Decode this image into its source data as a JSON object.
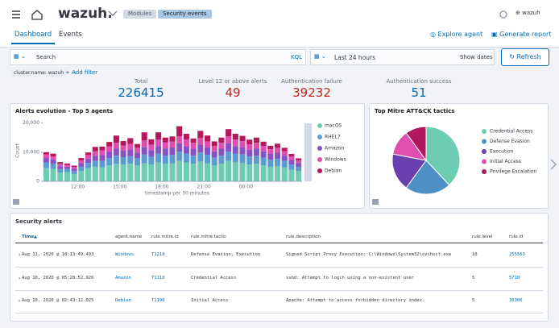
{
  "header": {
    "brand": "wazuh.",
    "breadcrumbs": [
      "Modules",
      "Security events"
    ],
    "user": "wazuh"
  },
  "tabs": [
    "Dashboard",
    "Events"
  ],
  "actions": [
    "Explore agent",
    "Generate report"
  ],
  "search": {
    "placeholder": "Search",
    "language": "KQL",
    "time_range": "Last 24 hours",
    "show_dates": "Show dates",
    "refresh": "Refresh"
  },
  "filters": {
    "active": "cluster.name: wazuh",
    "add": "+ Add filter"
  },
  "stats": [
    {
      "label": "Total",
      "value": 226415
    },
    {
      "label": "Level 12 or above alerts",
      "value": 49
    },
    {
      "label": "Authentication failure",
      "value": 39232
    },
    {
      "label": "Authentication success",
      "value": 51
    }
  ],
  "alerts_chart": {
    "type": "bar",
    "stacked": true,
    "title": "Alerts evolution - Top 5 agents",
    "x_label": "timestamp per 30 minutes",
    "y_label": "Count",
    "categories": [
      null,
      null,
      null,
      null,
      null,
      "12:00",
      null,
      null,
      null,
      null,
      null,
      "15:00",
      null,
      null,
      null,
      null,
      null,
      "18:00",
      null,
      null,
      null,
      null,
      null,
      "21:00",
      null,
      null,
      null,
      null,
      null,
      "00:00",
      null,
      null,
      null,
      null,
      null,
      null,
      null
    ],
    "series": [
      {
        "name": "macOS",
        "color": "#6dccb1",
        "values": [
          4500,
          4200,
          3000,
          3200,
          2500,
          3500,
          4500,
          5000,
          4800,
          5500,
          6000,
          5800,
          6000,
          5500,
          6200,
          5800,
          6500,
          6000,
          6200,
          7000,
          6500,
          6000,
          6800,
          6200,
          5500,
          6000,
          7000,
          6500,
          6300,
          5800,
          6000,
          5500,
          5000,
          5200,
          4800,
          4000,
          3500
        ]
      },
      {
        "name": "RHEL7",
        "color": "#5b9bd0",
        "values": [
          2000,
          1800,
          1200,
          1000,
          1000,
          1500,
          1800,
          2000,
          2200,
          2500,
          2800,
          2500,
          2600,
          2400,
          3000,
          2600,
          3000,
          2800,
          2900,
          3200,
          3000,
          2800,
          3100,
          2900,
          2600,
          2800,
          3200,
          3000,
          2900,
          2700,
          2800,
          2600,
          2400,
          2500,
          2200,
          1800,
          1500
        ]
      },
      {
        "name": "Amazon",
        "color": "#8553c2",
        "values": [
          1500,
          1500,
          1000,
          800,
          800,
          1200,
          1500,
          1800,
          2000,
          2200,
          2400,
          2200,
          2300,
          2000,
          2600,
          2300,
          2600,
          2500,
          2500,
          2800,
          2600,
          2400,
          2700,
          2500,
          2200,
          2400,
          2800,
          2600,
          2500,
          2300,
          2400,
          2200,
          2000,
          2100,
          1800,
          1500,
          1200
        ]
      },
      {
        "name": "Windows",
        "color": "#e04fb0",
        "values": [
          1200,
          1000,
          800,
          600,
          600,
          1000,
          1200,
          1500,
          1600,
          1800,
          2000,
          1800,
          1900,
          1700,
          2200,
          1900,
          2200,
          2100,
          2000,
          2400,
          2200,
          2000,
          2300,
          2100,
          1800,
          2000,
          2400,
          2200,
          2100,
          1900,
          2000,
          1800,
          1600,
          1700,
          1500,
          1200,
          1000
        ]
      },
      {
        "name": "Debian",
        "color": "#b4185b",
        "values": [
          800,
          1000,
          600,
          500,
          500,
          800,
          900,
          1500,
          1300,
          1500,
          2500,
          1500,
          2000,
          1200,
          2800,
          1800,
          2500,
          1600,
          1800,
          3500,
          2000,
          1500,
          2400,
          2000,
          1600,
          1800,
          2500,
          2000,
          1800,
          1600,
          1800,
          1500,
          1200,
          1400,
          1200,
          900,
          700
        ]
      }
    ],
    "ylim": [
      0,
      21000
    ],
    "yticks": [
      0,
      {
        "value": 10000,
        "label": "10,000"
      },
      {
        "value": 20000,
        "label": "20,000"
      }
    ]
  },
  "tactics_chart": {
    "type": "pie",
    "title": "Top Mitre ATT&CK tactics",
    "categories": [
      "Credential Access",
      "Defense Evasion",
      "Execution",
      "Initial Access",
      "Privilege Escalation"
    ],
    "values": [
      38,
      22,
      18,
      12,
      10
    ],
    "colors": [
      "#6dccb1",
      "#4d8fc7",
      "#6a3fb0",
      "#e04fb0",
      "#b0185b"
    ]
  },
  "table": {
    "title": "Security alerts",
    "columns": [
      "Time",
      "agent.name",
      "rule.mitre.id",
      "rule.mitre.tactic",
      "rule.description",
      "rule.level",
      "rule.id"
    ],
    "rows": [
      [
        "Aug 11, 2020 @ 10:13:49.493",
        "Windows",
        "T1218",
        "Defense Evasion, Execution",
        "Signed Script Proxy Execution: C:\\Windows\\System32\\svchost.exe",
        10,
        255563
      ],
      [
        "Aug 10, 2020 @ 05:28:52.926",
        "Amazon",
        "T1110",
        "Credential Access",
        "sshd: Attempt to login using a non-existent user",
        5,
        5710
      ],
      [
        "Aug 10, 2020 @ 02:43:12.025",
        "Debian",
        "T1190",
        "Initial Access",
        "Apache: Attempt to access forbidden directory index.",
        5,
        30306
      ]
    ]
  }
}
